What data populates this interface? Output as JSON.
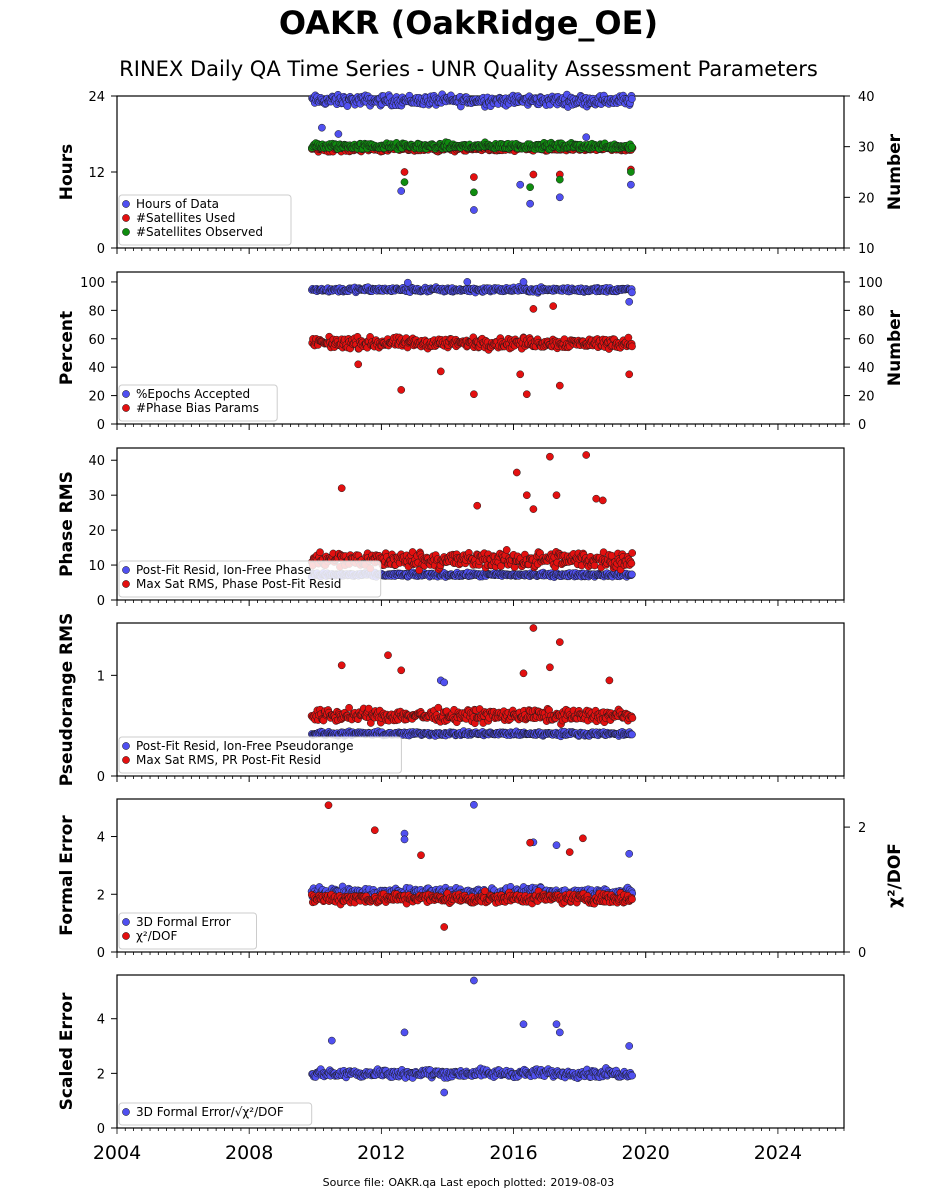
{
  "header": {
    "title": "OAKR (OakRidge_OE)",
    "subtitle": "RINEX Daily QA Time Series - UNR Quality Assessment Parameters"
  },
  "footer": {
    "source_label": "Source file:",
    "source_file": "OAKR.qa",
    "last_epoch_label": "Last epoch plotted:",
    "last_epoch": "2019-08-03"
  },
  "colors": {
    "blue": "#5050f0",
    "red": "#e31010",
    "green": "#0f8c0f",
    "edge": "#1a1a1a"
  },
  "chart_data": [
    {
      "type": "scatter",
      "ylabel": "Hours",
      "ylabel_right": "Number",
      "ylim": [
        0,
        24
      ],
      "yticks": [
        0,
        12,
        24
      ],
      "ylim_right": [
        10,
        40
      ],
      "yticks_right": [
        10,
        20,
        30,
        40
      ],
      "xlim": [
        2004,
        2026
      ],
      "legend_loc": "lower-left",
      "series": [
        {
          "name": "Hours of Data",
          "color": "blue",
          "axis": "left",
          "start": 2009.9,
          "end": 2019.59,
          "base": 23.3,
          "spread": 1.2,
          "outliers": [
            [
              2010.2,
              19
            ],
            [
              2010.7,
              18
            ],
            [
              2012.6,
              9
            ],
            [
              2014.8,
              6
            ],
            [
              2016.2,
              10
            ],
            [
              2016.5,
              7
            ],
            [
              2017.4,
              8
            ],
            [
              2018.2,
              17.5
            ],
            [
              2019.55,
              10
            ]
          ]
        },
        {
          "name": "#Satellites Used",
          "color": "red",
          "axis": "right",
          "start": 2009.9,
          "end": 2019.59,
          "base": 29.6,
          "spread": 0.8,
          "outliers": [
            [
              2012.7,
              25
            ],
            [
              2014.8,
              24
            ],
            [
              2016.6,
              24.5
            ],
            [
              2017.4,
              24.5
            ],
            [
              2019.55,
              25.5
            ]
          ]
        },
        {
          "name": "#Satellites Observed",
          "color": "green",
          "axis": "right",
          "start": 2009.9,
          "end": 2019.59,
          "base": 30.1,
          "spread": 0.9,
          "outliers": [
            [
              2012.7,
              23
            ],
            [
              2014.8,
              21
            ],
            [
              2016.5,
              22
            ],
            [
              2017.4,
              23.5
            ],
            [
              2019.55,
              25
            ]
          ]
        }
      ]
    },
    {
      "type": "scatter",
      "ylabel": "Percent",
      "ylabel_right": "Number",
      "ylim": [
        0,
        107
      ],
      "yticks": [
        0,
        20,
        40,
        60,
        80,
        100
      ],
      "ylim_right": [
        0,
        107
      ],
      "yticks_right": [
        0,
        20,
        40,
        60,
        80,
        100
      ],
      "xlim": [
        2004,
        2026
      ],
      "legend_loc": "lower-left",
      "series": [
        {
          "name": "%Epochs Accepted",
          "color": "blue",
          "axis": "left",
          "start": 2009.9,
          "end": 2019.59,
          "base": 94.5,
          "spread": 2.5,
          "outliers": [
            [
              2012.8,
              99.5
            ],
            [
              2014.6,
              100
            ],
            [
              2016.3,
              100
            ],
            [
              2019.5,
              86
            ]
          ]
        },
        {
          "name": "#Phase Bias Params",
          "color": "red",
          "axis": "right",
          "start": 2009.9,
          "end": 2019.59,
          "base": 57,
          "spread": 5.5,
          "outliers": [
            [
              2011.3,
              42
            ],
            [
              2012.6,
              24
            ],
            [
              2013.8,
              37
            ],
            [
              2014.8,
              21
            ],
            [
              2016.2,
              35
            ],
            [
              2016.4,
              21
            ],
            [
              2016.6,
              81
            ],
            [
              2017.2,
              83
            ],
            [
              2017.4,
              27
            ],
            [
              2019.5,
              35
            ]
          ]
        }
      ]
    },
    {
      "type": "scatter",
      "ylabel": "Phase RMS",
      "ylim": [
        0,
        43.5
      ],
      "yticks": [
        0,
        10,
        20,
        30,
        40
      ],
      "xlim": [
        2004,
        2026
      ],
      "legend_loc": "lower-left",
      "series": [
        {
          "name": "Post-Fit Resid, Ion-Free Phase",
          "color": "blue",
          "axis": "left",
          "start": 2009.9,
          "end": 2019.59,
          "base": 7.2,
          "spread": 0.8,
          "outliers": []
        },
        {
          "name": "Max Sat RMS, Phase Post-Fit Resid",
          "color": "red",
          "axis": "left",
          "start": 2009.9,
          "end": 2019.59,
          "base": 11.5,
          "spread": 3.5,
          "outliers": [
            [
              2010.8,
              32
            ],
            [
              2014.9,
              27
            ],
            [
              2016.1,
              36.5
            ],
            [
              2016.4,
              30
            ],
            [
              2016.6,
              26
            ],
            [
              2017.1,
              41
            ],
            [
              2017.3,
              30
            ],
            [
              2018.2,
              41.5
            ],
            [
              2018.5,
              29
            ],
            [
              2018.7,
              28.5
            ]
          ]
        }
      ]
    },
    {
      "type": "scatter",
      "ylabel": "Pseudorange RMS",
      "ylim": [
        0,
        1.52
      ],
      "yticks": [
        0,
        1
      ],
      "xlim": [
        2004,
        2026
      ],
      "legend_loc": "lower-left",
      "series": [
        {
          "name": "Post-Fit Resid, Ion-Free Pseudorange",
          "color": "blue",
          "axis": "left",
          "start": 2009.9,
          "end": 2019.59,
          "base": 0.42,
          "spread": 0.03,
          "outliers": [
            [
              2013.8,
              0.95
            ],
            [
              2013.9,
              0.93
            ]
          ]
        },
        {
          "name": "Max Sat RMS, PR Post-Fit Resid",
          "color": "red",
          "axis": "left",
          "start": 2009.9,
          "end": 2019.59,
          "base": 0.6,
          "spread": 0.09,
          "outliers": [
            [
              2010.8,
              1.1
            ],
            [
              2012.2,
              1.2
            ],
            [
              2012.6,
              1.05
            ],
            [
              2016.3,
              1.02
            ],
            [
              2016.6,
              1.47
            ],
            [
              2017.4,
              1.33
            ],
            [
              2017.1,
              1.08
            ],
            [
              2018.9,
              0.95
            ]
          ]
        }
      ]
    },
    {
      "type": "scatter",
      "ylabel": "Formal Error",
      "ylabel_right": "χ²/DOF",
      "ylim": [
        0,
        5.3
      ],
      "yticks": [
        0,
        2,
        4
      ],
      "ylim_right": [
        0,
        2.45
      ],
      "yticks_right": [
        0,
        2
      ],
      "xlim": [
        2004,
        2026
      ],
      "legend_loc": "lower-left",
      "series": [
        {
          "name": "3D Formal Error",
          "color": "blue",
          "axis": "left",
          "start": 2009.9,
          "end": 2019.59,
          "base": 2.05,
          "spread": 0.25,
          "outliers": [
            [
              2012.7,
              4.1
            ],
            [
              2012.7,
              3.9
            ],
            [
              2014.8,
              5.1
            ],
            [
              2016.6,
              3.8
            ],
            [
              2017.3,
              3.7
            ],
            [
              2019.5,
              3.4
            ]
          ]
        },
        {
          "name": "χ²/DOF",
          "color": "red",
          "axis": "right",
          "start": 2009.9,
          "end": 2019.59,
          "base": 0.86,
          "spread": 0.12,
          "outliers": [
            [
              2010.4,
              2.35
            ],
            [
              2011.8,
              1.95
            ],
            [
              2013.2,
              1.55
            ],
            [
              2016.5,
              1.75
            ],
            [
              2017.7,
              1.6
            ],
            [
              2018.1,
              1.82
            ],
            [
              2013.9,
              0.4
            ]
          ]
        }
      ]
    },
    {
      "type": "scatter",
      "ylabel": "Scaled Error",
      "ylim": [
        0,
        5.6
      ],
      "yticks": [
        0,
        2,
        4
      ],
      "xlim": [
        2004,
        2026
      ],
      "legend_loc": "lower-left",
      "xticks": [
        2004,
        2008,
        2012,
        2016,
        2020,
        2024
      ],
      "series": [
        {
          "name": "3D Formal Error/√χ²/DOF",
          "color": "blue",
          "axis": "left",
          "start": 2009.9,
          "end": 2019.59,
          "base": 2.0,
          "spread": 0.22,
          "outliers": [
            [
              2010.5,
              3.2
            ],
            [
              2012.7,
              3.5
            ],
            [
              2013.9,
              1.3
            ],
            [
              2014.8,
              5.4
            ],
            [
              2016.3,
              3.8
            ],
            [
              2017.3,
              3.8
            ],
            [
              2017.4,
              3.5
            ],
            [
              2019.5,
              3.0
            ]
          ]
        }
      ]
    }
  ]
}
